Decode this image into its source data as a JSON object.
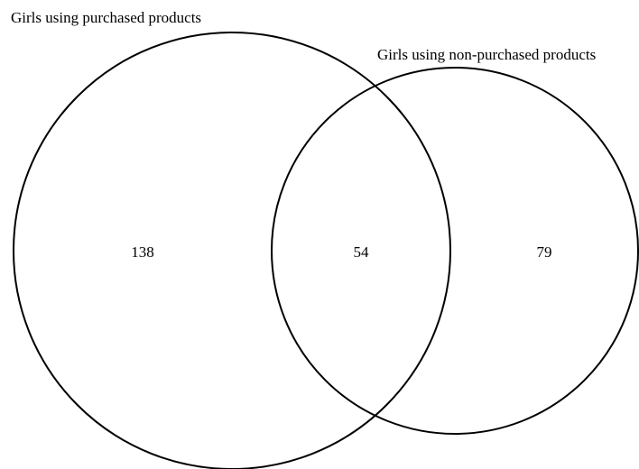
{
  "sets": [
    {
      "label": "Girls using purchased products",
      "only": 138
    },
    {
      "label": "Girls using non-purchased products",
      "only": 79
    }
  ],
  "intersection": 54
}
